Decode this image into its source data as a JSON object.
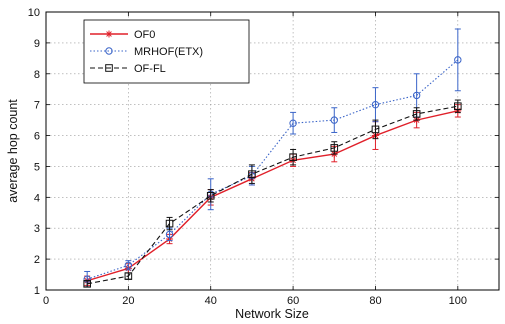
{
  "chart_data": {
    "type": "line",
    "title": "",
    "xlabel": "Network Size",
    "ylabel": "average hop count",
    "xlim": [
      0,
      110
    ],
    "ylim": [
      1,
      10
    ],
    "xticks": [
      0,
      20,
      40,
      60,
      80,
      100
    ],
    "yticks": [
      1,
      2,
      3,
      4,
      5,
      6,
      7,
      8,
      9,
      10
    ],
    "grid": true,
    "legend_position": "top-left",
    "x": [
      10,
      20,
      30,
      40,
      50,
      60,
      70,
      80,
      90,
      100
    ],
    "series": [
      {
        "name": "OF0",
        "color": "#e0202a",
        "line_style": "solid",
        "marker": "star",
        "values": [
          1.3,
          1.7,
          2.65,
          4.0,
          4.6,
          5.2,
          5.4,
          6.0,
          6.5,
          6.8
        ],
        "err": [
          0.15,
          0.15,
          0.15,
          0.25,
          0.2,
          0.2,
          0.25,
          0.45,
          0.25,
          0.2
        ]
      },
      {
        "name": "MRHOF(ETX)",
        "color": "#3a64c8",
        "line_style": "dotted",
        "marker": "circle",
        "values": [
          1.35,
          1.8,
          2.8,
          4.1,
          4.7,
          6.4,
          6.5,
          7.0,
          7.3,
          8.45
        ],
        "err": [
          0.25,
          0.15,
          0.2,
          0.5,
          0.3,
          0.35,
          0.4,
          0.55,
          0.7,
          1.0
        ]
      },
      {
        "name": "OF-FL",
        "color": "#111111",
        "line_style": "dashed",
        "marker": "square",
        "values": [
          1.2,
          1.45,
          3.15,
          4.05,
          4.75,
          5.3,
          5.6,
          6.2,
          6.7,
          6.95
        ],
        "err": [
          0.1,
          0.1,
          0.2,
          0.2,
          0.3,
          0.25,
          0.2,
          0.3,
          0.2,
          0.2
        ]
      }
    ]
  }
}
